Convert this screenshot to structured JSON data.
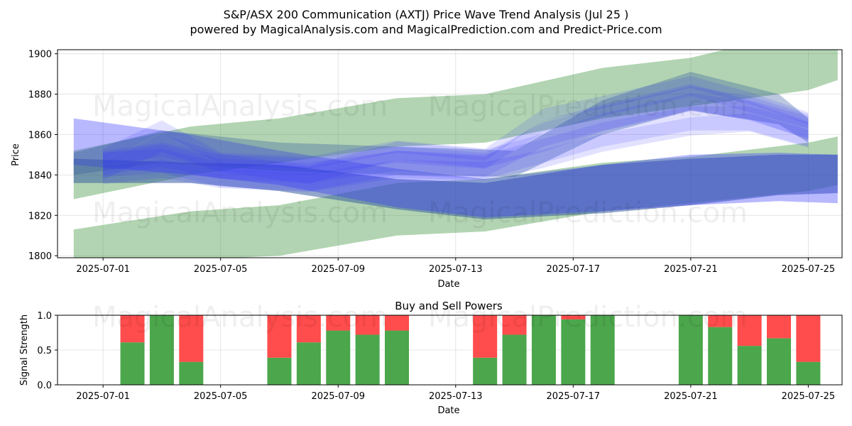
{
  "header": {
    "title": "S&P/ASX 200 Communication (AXTJ) Price Wave Trend Analysis (Jul 25 )",
    "subtitle": "powered by MagicalAnalysis.com and MagicalPrediction.com and Predict-Price.com"
  },
  "watermarks": [
    "MagicalAnalysis.com",
    "MagicalPrediction.com"
  ],
  "colors": {
    "green_band": "#2e8b2e",
    "blue_wave": "#3333ff",
    "buy": "#4ca64c",
    "sell": "#ff4c4c"
  },
  "chart_data": [
    {
      "type": "area",
      "xlabel": "Date",
      "ylabel": "Price",
      "ylim": [
        1799,
        1902
      ],
      "xlim": [
        "2025-06-30",
        "2025-07-26"
      ],
      "x_ticks": [
        "2025-07-01",
        "2025-07-05",
        "2025-07-09",
        "2025-07-13",
        "2025-07-17",
        "2025-07-21",
        "2025-07-25"
      ],
      "y_ticks": [
        1800,
        1820,
        1840,
        1860,
        1880,
        1900
      ],
      "grid": true,
      "bands": [
        {
          "name": "upper-green-band",
          "x": [
            "2025-06-30",
            "2025-07-04",
            "2025-07-07",
            "2025-07-11",
            "2025-07-14",
            "2025-07-18",
            "2025-07-21",
            "2025-07-25",
            "2025-07-26"
          ],
          "upper": [
            1852,
            1864,
            1868,
            1878,
            1880,
            1893,
            1898,
            1912,
            1912
          ],
          "lower": [
            1828,
            1840,
            1846,
            1854,
            1856,
            1868,
            1874,
            1882,
            1887
          ]
        },
        {
          "name": "lower-green-band",
          "x": [
            "2025-06-30",
            "2025-07-04",
            "2025-07-07",
            "2025-07-11",
            "2025-07-14",
            "2025-07-18",
            "2025-07-21",
            "2025-07-25",
            "2025-07-26"
          ],
          "upper": [
            1813,
            1822,
            1825,
            1836,
            1838,
            1846,
            1849,
            1856,
            1859
          ],
          "lower": [
            1790,
            1798,
            1800,
            1810,
            1812,
            1822,
            1826,
            1832,
            1835
          ]
        },
        {
          "name": "dark-blue-band",
          "x": [
            "2025-06-30",
            "2025-07-04",
            "2025-07-07",
            "2025-07-11",
            "2025-07-14",
            "2025-07-18",
            "2025-07-21",
            "2025-07-24",
            "2025-07-26"
          ],
          "upper": [
            1848,
            1846,
            1845,
            1838,
            1836,
            1845,
            1848,
            1850,
            1850
          ],
          "lower": [
            1836,
            1836,
            1832,
            1823,
            1818,
            1821,
            1825,
            1830,
            1831
          ]
        },
        {
          "name": "light-blue-band",
          "x": [
            "2025-06-30",
            "2025-07-04",
            "2025-07-07",
            "2025-07-11",
            "2025-07-14",
            "2025-07-18",
            "2025-07-21",
            "2025-07-24",
            "2025-07-26"
          ],
          "upper": [
            1868,
            1860,
            1852,
            1843,
            1838,
            1845,
            1850,
            1851,
            1850
          ],
          "lower": [
            1845,
            1840,
            1835,
            1824,
            1819,
            1822,
            1825,
            1827,
            1826
          ]
        },
        {
          "name": "steel-blue-band",
          "x": [
            "2025-06-30",
            "2025-07-03",
            "2025-07-07",
            "2025-07-11",
            "2025-07-15",
            "2025-07-18",
            "2025-07-21",
            "2025-07-24",
            "2025-07-25"
          ],
          "upper": [
            1851,
            1862,
            1856,
            1854,
            1852,
            1877,
            1891,
            1880,
            1868
          ],
          "lower": [
            1840,
            1846,
            1842,
            1840,
            1839,
            1860,
            1872,
            1865,
            1856
          ]
        }
      ],
      "waves": [
        {
          "x": [
            "2025-07-01",
            "2025-07-03",
            "2025-07-05",
            "2025-07-08",
            "2025-07-11",
            "2025-07-14",
            "2025-07-16",
            "2025-07-18",
            "2025-07-21",
            "2025-07-23",
            "2025-07-25"
          ],
          "y": [
            1848,
            1852,
            1845,
            1843,
            1849,
            1846,
            1864,
            1872,
            1882,
            1874,
            1866
          ]
        },
        {
          "x": [
            "2025-07-01",
            "2025-07-03",
            "2025-07-05",
            "2025-07-08",
            "2025-07-11",
            "2025-07-14",
            "2025-07-16",
            "2025-07-18",
            "2025-07-21",
            "2025-07-23",
            "2025-07-25"
          ],
          "y": [
            1842,
            1856,
            1846,
            1840,
            1852,
            1848,
            1856,
            1866,
            1876,
            1872,
            1862
          ]
        },
        {
          "x": [
            "2025-07-01",
            "2025-07-03",
            "2025-07-05",
            "2025-07-08",
            "2025-07-11",
            "2025-07-14",
            "2025-07-16",
            "2025-07-18",
            "2025-07-21",
            "2025-07-23",
            "2025-07-25"
          ],
          "y": [
            1845,
            1847,
            1840,
            1838,
            1846,
            1844,
            1852,
            1860,
            1868,
            1868,
            1860
          ]
        },
        {
          "x": [
            "2025-07-01",
            "2025-07-03",
            "2025-07-05",
            "2025-07-08",
            "2025-07-11",
            "2025-07-14",
            "2025-07-16",
            "2025-07-18",
            "2025-07-21",
            "2025-07-23",
            "2025-07-25"
          ],
          "y": [
            1850,
            1864,
            1848,
            1846,
            1854,
            1850,
            1870,
            1876,
            1886,
            1878,
            1868
          ]
        },
        {
          "x": [
            "2025-07-01",
            "2025-07-03",
            "2025-07-05",
            "2025-07-08",
            "2025-07-11",
            "2025-07-14",
            "2025-07-16",
            "2025-07-18",
            "2025-07-21",
            "2025-07-23",
            "2025-07-25"
          ],
          "y": [
            1840,
            1843,
            1838,
            1836,
            1843,
            1842,
            1848,
            1856,
            1864,
            1866,
            1858
          ]
        },
        {
          "x": [
            "2025-07-01",
            "2025-07-03",
            "2025-07-05",
            "2025-07-08",
            "2025-07-11",
            "2025-07-14",
            "2025-07-16",
            "2025-07-18",
            "2025-07-21",
            "2025-07-23",
            "2025-07-25"
          ],
          "y": [
            1846,
            1850,
            1844,
            1842,
            1848,
            1845,
            1860,
            1868,
            1878,
            1873,
            1864
          ]
        }
      ]
    },
    {
      "type": "bar",
      "title": "Buy and Sell Powers",
      "xlabel": "Date",
      "ylabel": "Signal Strength",
      "ylim": [
        0,
        1
      ],
      "xlim": [
        "2025-06-30",
        "2025-07-26"
      ],
      "x_ticks": [
        "2025-07-01",
        "2025-07-05",
        "2025-07-09",
        "2025-07-13",
        "2025-07-17",
        "2025-07-21",
        "2025-07-25"
      ],
      "y_ticks": [
        "0.0",
        "0.5",
        "1.0"
      ],
      "grid": true,
      "categories": [
        "2025-07-02",
        "2025-07-03",
        "2025-07-04",
        "2025-07-07",
        "2025-07-08",
        "2025-07-09",
        "2025-07-10",
        "2025-07-11",
        "2025-07-14",
        "2025-07-15",
        "2025-07-16",
        "2025-07-17",
        "2025-07-18",
        "2025-07-21",
        "2025-07-22",
        "2025-07-23",
        "2025-07-24",
        "2025-07-25"
      ],
      "series": [
        {
          "name": "Buy",
          "values": [
            0.61,
            1.0,
            0.33,
            0.39,
            0.61,
            0.78,
            0.72,
            0.78,
            0.39,
            0.72,
            1.0,
            0.94,
            1.0,
            1.0,
            0.83,
            0.56,
            0.67,
            0.33
          ]
        },
        {
          "name": "Sell",
          "values": [
            0.39,
            0.0,
            0.67,
            0.61,
            0.39,
            0.22,
            0.28,
            0.22,
            0.61,
            0.28,
            0.0,
            0.06,
            0.0,
            0.0,
            0.17,
            0.44,
            0.33,
            0.67
          ]
        }
      ]
    }
  ]
}
